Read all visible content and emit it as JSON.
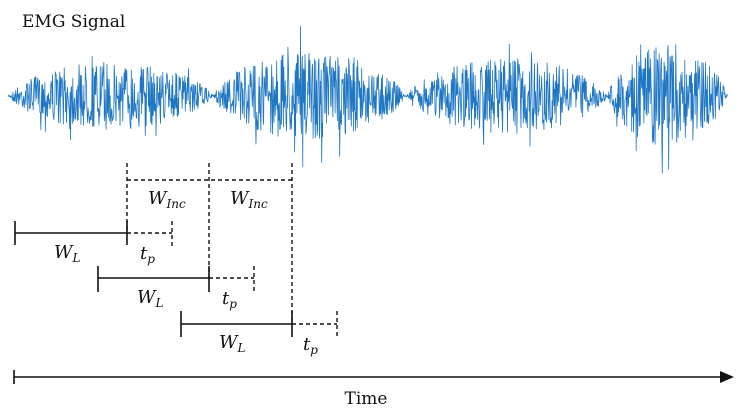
{
  "diagram": {
    "signal_title": "EMG Signal",
    "signal_color": "#1f77c4",
    "bursts": [
      {
        "amplitude": 0.55
      },
      {
        "amplitude": 0.72
      },
      {
        "amplitude": 0.62
      },
      {
        "amplitude": 0.85
      }
    ],
    "window_label": "W",
    "window_sub": "L",
    "increment_label": "W",
    "increment_sub": "Inc",
    "processing_label": "t",
    "processing_sub": "p",
    "time_axis_label": "Time"
  }
}
